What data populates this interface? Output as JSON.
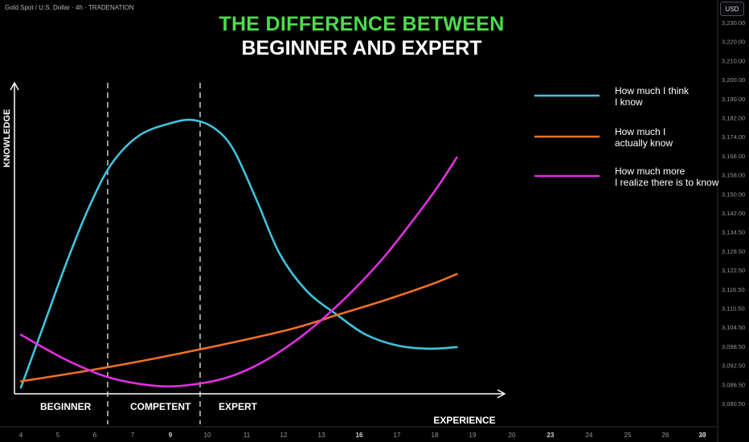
{
  "header": {
    "symbol_label": "Gold Spot / U.S. Dollar · 4h · TRADENATION",
    "currency_label": "USD"
  },
  "chart_data": {
    "type": "line",
    "title": "THE DIFFERENCE BETWEEN",
    "subtitle": "BEGINNER AND EXPERT",
    "xlabel": "EXPERIENCE",
    "ylabel": "KNOWLEDGE",
    "x_ticks": [
      "4",
      "5",
      "6",
      "7",
      "8",
      "9",
      "10",
      "11",
      "12",
      "13",
      "14",
      "16",
      "17",
      "18",
      "19",
      "20",
      "23",
      "24",
      "25",
      "26",
      "27",
      "30"
    ],
    "y_ticks": [
      "3,230.00",
      "3,220.00",
      "3,210.00",
      "3,200.00",
      "3,190.00",
      "3,182.00",
      "3,174.00",
      "3,166.00",
      "3,158.00",
      "3,150.00",
      "3,142.00",
      "3,134.50",
      "3,128.50",
      "3,122.50",
      "3,116.50",
      "3,110.50",
      "3,104.50",
      "3,098.50",
      "3,092.50",
      "3,086.50",
      "3,080.50"
    ],
    "regions": [
      "BEGINNER",
      "COMPETENT",
      "EXPERT"
    ],
    "grid": false,
    "legend_position": "right",
    "series": [
      {
        "name": "How much I think\nI know",
        "color": "#40c4dc",
        "points": [
          [
            0.0,
            0.02
          ],
          [
            0.5,
            0.22
          ],
          [
            1.0,
            0.42
          ],
          [
            1.5,
            0.6
          ],
          [
            2.0,
            0.74
          ],
          [
            2.6,
            0.83
          ],
          [
            3.3,
            0.87
          ],
          [
            3.8,
            0.88
          ],
          [
            4.3,
            0.85
          ],
          [
            4.7,
            0.78
          ],
          [
            5.2,
            0.62
          ],
          [
            5.7,
            0.45
          ],
          [
            6.3,
            0.33
          ],
          [
            7.0,
            0.25
          ],
          [
            7.6,
            0.19
          ],
          [
            8.3,
            0.155
          ],
          [
            9.0,
            0.145
          ],
          [
            9.6,
            0.15
          ]
        ]
      },
      {
        "name": "How much I\nactually know",
        "color": "#f07020",
        "points": [
          [
            0.0,
            0.04
          ],
          [
            1.5,
            0.075
          ],
          [
            3.0,
            0.115
          ],
          [
            4.5,
            0.16
          ],
          [
            6.0,
            0.21
          ],
          [
            7.0,
            0.255
          ],
          [
            8.0,
            0.3
          ],
          [
            9.0,
            0.35
          ],
          [
            9.6,
            0.385
          ]
        ]
      },
      {
        "name": "How much more\nI realize there is to know",
        "color": "#e030e0",
        "points": [
          [
            0.0,
            0.19
          ],
          [
            0.6,
            0.14
          ],
          [
            1.2,
            0.095
          ],
          [
            2.0,
            0.05
          ],
          [
            3.0,
            0.025
          ],
          [
            3.8,
            0.03
          ],
          [
            4.6,
            0.055
          ],
          [
            5.3,
            0.1
          ],
          [
            6.0,
            0.165
          ],
          [
            6.6,
            0.235
          ],
          [
            7.3,
            0.33
          ],
          [
            8.0,
            0.44
          ],
          [
            8.7,
            0.57
          ],
          [
            9.2,
            0.67
          ],
          [
            9.6,
            0.76
          ]
        ]
      }
    ]
  }
}
